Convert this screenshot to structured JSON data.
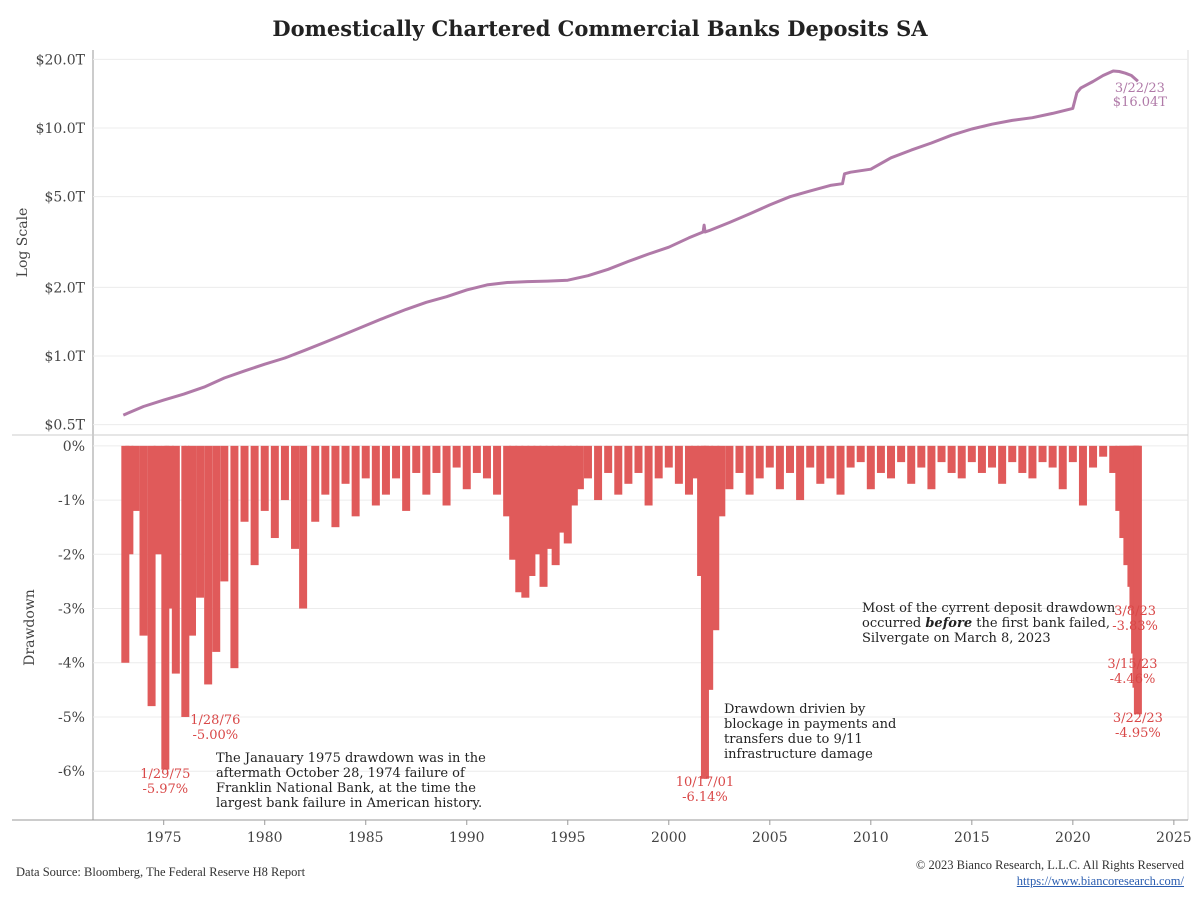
{
  "title": "Domestically Chartered Commercial Banks Deposits SA",
  "footer": {
    "source": "Data Source: Bloomberg, The Federal Reserve H8 Report",
    "copyright": "© 2023 Bianco Research, L.L.C. All Rights Reserved",
    "link": "https://www.biancoresearch.com/"
  },
  "colors": {
    "line": "#b07aa8",
    "drawdown": "#e05a5a",
    "annotation": "#d94848",
    "grid": "#ececec",
    "axis": "#999999"
  },
  "chart_data": [
    {
      "type": "line",
      "ylabel": "Log Scale",
      "yscale": "log",
      "ylim": [
        0.45,
        22
      ],
      "yticks": [
        {
          "value": 20,
          "label": "$20.0T"
        },
        {
          "value": 10,
          "label": "$10.0T"
        },
        {
          "value": 5,
          "label": "$5.0T"
        },
        {
          "value": 2,
          "label": "$2.0T"
        },
        {
          "value": 1,
          "label": "$1.0T"
        },
        {
          "value": 0.5,
          "label": "$0.5T"
        }
      ],
      "series": [
        {
          "x": [
            1973.0,
            1974.0,
            1975.0,
            1976.0,
            1977.0,
            1978.0,
            1979.0,
            1980.0,
            1981.0,
            1982.0,
            1983.0,
            1984.0,
            1985.0,
            1986.0,
            1987.0,
            1988.0,
            1989.0,
            1990.0,
            1991.0,
            1992.0,
            1993.0,
            1994.0,
            1995.0,
            1996.0,
            1997.0,
            1998.0,
            1999.0,
            2000.0,
            2001.0,
            2001.7,
            2001.75,
            2001.8,
            2002.0,
            2003.0,
            2004.0,
            2005.0,
            2006.0,
            2007.0,
            2008.0,
            2008.6,
            2008.7,
            2009.0,
            2010.0,
            2011.0,
            2012.0,
            2013.0,
            2014.0,
            2015.0,
            2016.0,
            2017.0,
            2018.0,
            2019.0,
            2020.0,
            2020.2,
            2020.4,
            2021.0,
            2021.5,
            2022.0,
            2022.3,
            2022.6,
            2022.9,
            2023.22
          ],
          "y": [
            0.55,
            0.6,
            0.64,
            0.68,
            0.73,
            0.8,
            0.86,
            0.92,
            0.98,
            1.06,
            1.15,
            1.25,
            1.36,
            1.48,
            1.6,
            1.72,
            1.82,
            1.95,
            2.05,
            2.1,
            2.12,
            2.13,
            2.15,
            2.25,
            2.4,
            2.6,
            2.8,
            3.0,
            3.3,
            3.5,
            3.75,
            3.5,
            3.55,
            3.85,
            4.2,
            4.6,
            5.0,
            5.3,
            5.6,
            5.7,
            6.3,
            6.4,
            6.6,
            7.4,
            8.0,
            8.6,
            9.3,
            9.9,
            10.4,
            10.8,
            11.1,
            11.6,
            12.2,
            14.3,
            15.0,
            16.0,
            17.0,
            17.8,
            17.7,
            17.4,
            17.0,
            16.04
          ]
        }
      ],
      "annotations": [
        {
          "x": 2023.22,
          "lines": [
            "3/22/23",
            "$16.04T"
          ]
        }
      ]
    },
    {
      "type": "bar",
      "ylabel": "Drawdown",
      "ylim": [
        -6.9,
        0.2
      ],
      "yticks": [
        {
          "value": 0,
          "label": "0%"
        },
        {
          "value": -1,
          "label": "-1%"
        },
        {
          "value": -2,
          "label": "-2%"
        },
        {
          "value": -3,
          "label": "-3%"
        },
        {
          "value": -4,
          "label": "-4%"
        },
        {
          "value": -5,
          "label": "-5%"
        },
        {
          "value": -6,
          "label": "-6%"
        }
      ],
      "x": [
        1973.1,
        1973.3,
        1973.6,
        1974.0,
        1974.4,
        1974.7,
        1975.08,
        1975.3,
        1975.6,
        1976.07,
        1976.4,
        1976.8,
        1977.2,
        1977.6,
        1978.0,
        1978.5,
        1979.0,
        1979.5,
        1980.0,
        1980.5,
        1981.0,
        1981.5,
        1981.9,
        1982.5,
        1983.0,
        1983.5,
        1984.0,
        1984.5,
        1985.0,
        1985.5,
        1986.0,
        1986.5,
        1987.0,
        1987.5,
        1988.0,
        1988.5,
        1989.0,
        1989.5,
        1990.0,
        1990.5,
        1991.0,
        1991.5,
        1992.0,
        1992.3,
        1992.6,
        1992.9,
        1993.2,
        1993.5,
        1993.8,
        1994.1,
        1994.4,
        1994.7,
        1995.0,
        1995.3,
        1995.6,
        1996.0,
        1996.5,
        1997.0,
        1997.5,
        1998.0,
        1998.5,
        1999.0,
        1999.5,
        2000.0,
        2000.5,
        2001.0,
        2001.3,
        2001.6,
        2001.79,
        2002.0,
        2002.3,
        2002.6,
        2003.0,
        2003.5,
        2004.0,
        2004.5,
        2005.0,
        2005.5,
        2006.0,
        2006.5,
        2007.0,
        2007.5,
        2008.0,
        2008.5,
        2009.0,
        2009.5,
        2010.0,
        2010.5,
        2011.0,
        2011.5,
        2012.0,
        2012.5,
        2013.0,
        2013.5,
        2014.0,
        2014.5,
        2015.0,
        2015.5,
        2016.0,
        2016.5,
        2017.0,
        2017.5,
        2018.0,
        2018.5,
        2019.0,
        2019.5,
        2020.0,
        2020.5,
        2021.0,
        2021.5,
        2022.0,
        2022.3,
        2022.5,
        2022.7,
        2022.9,
        2023.0,
        2023.08,
        2023.15,
        2023.2,
        2023.22
      ],
      "values": [
        -4.0,
        -2.0,
        -1.2,
        -3.5,
        -4.8,
        -2.0,
        -5.97,
        -3.0,
        -4.2,
        -5.0,
        -3.5,
        -2.8,
        -4.4,
        -3.8,
        -2.5,
        -4.1,
        -1.4,
        -2.2,
        -1.2,
        -1.7,
        -1.0,
        -1.9,
        -3.0,
        -1.4,
        -0.9,
        -1.5,
        -0.7,
        -1.3,
        -0.6,
        -1.1,
        -0.9,
        -0.6,
        -1.2,
        -0.5,
        -0.9,
        -0.5,
        -1.1,
        -0.4,
        -0.8,
        -0.5,
        -0.6,
        -0.9,
        -1.3,
        -2.1,
        -2.7,
        -2.8,
        -2.4,
        -2.0,
        -2.6,
        -1.9,
        -2.2,
        -1.6,
        -1.8,
        -1.1,
        -0.8,
        -0.6,
        -1.0,
        -0.5,
        -0.9,
        -0.7,
        -0.5,
        -1.1,
        -0.6,
        -0.4,
        -0.7,
        -0.9,
        -0.6,
        -2.4,
        -6.14,
        -4.5,
        -3.4,
        -1.3,
        -0.8,
        -0.5,
        -0.9,
        -0.6,
        -0.4,
        -0.8,
        -0.5,
        -1.0,
        -0.4,
        -0.7,
        -0.6,
        -0.9,
        -0.4,
        -0.3,
        -0.8,
        -0.5,
        -0.6,
        -0.3,
        -0.7,
        -0.4,
        -0.8,
        -0.3,
        -0.5,
        -0.6,
        -0.3,
        -0.5,
        -0.4,
        -0.7,
        -0.3,
        -0.5,
        -0.6,
        -0.3,
        -0.4,
        -0.8,
        -0.3,
        -1.1,
        -0.4,
        -0.2,
        -0.5,
        -1.2,
        -1.7,
        -2.2,
        -2.6,
        -3.0,
        -3.83,
        -4.46,
        -4.2,
        -4.95
      ],
      "point_labels": [
        {
          "x": 1976.07,
          "lines": [
            "1/28/76",
            "-5.00%"
          ]
        },
        {
          "x": 1975.08,
          "lines": [
            "1/29/75",
            "-5.97%"
          ]
        },
        {
          "x": 2001.79,
          "lines": [
            "10/17/01",
            "-6.14%"
          ]
        },
        {
          "x": 2023.08,
          "lines": [
            "3/8/23",
            "-3.83%"
          ]
        },
        {
          "x": 2023.15,
          "lines": [
            "3/15/23",
            "-4.46%"
          ]
        },
        {
          "x": 2023.22,
          "lines": [
            "3/22/23",
            "-4.95%"
          ]
        }
      ],
      "notes": [
        {
          "lines": [
            "The Janauary 1975 drawdown was in the",
            "aftermath October 28, 1974 failure of",
            "Franklin National  Bank, at the time the",
            "largest bank failure in American history."
          ]
        },
        {
          "lines": [
            "Drawdown drivien by",
            "blockage in payments and",
            "transfers due to 9/11",
            "infrastructure damage"
          ]
        },
        {
          "lines": [
            "Most of the cyrrent deposit drawdown",
            "occurred before the first bank failed,",
            "Silvergate on March 8, 2023"
          ],
          "emphasis": "before"
        }
      ]
    }
  ],
  "xaxis": {
    "xlim": [
      1971.5,
      2025.7
    ],
    "ticks": [
      1975,
      1980,
      1985,
      1990,
      1995,
      2000,
      2005,
      2010,
      2015,
      2020,
      2025
    ]
  }
}
